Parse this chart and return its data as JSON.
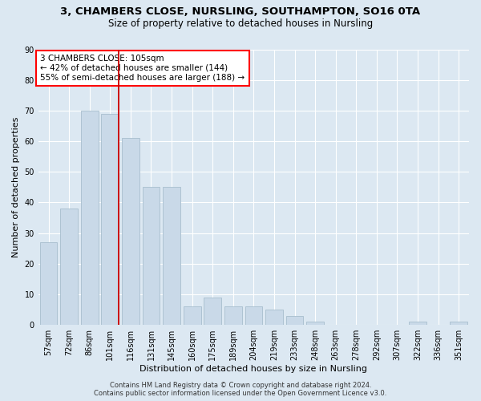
{
  "title1": "3, CHAMBERS CLOSE, NURSLING, SOUTHAMPTON, SO16 0TA",
  "title2": "Size of property relative to detached houses in Nursling",
  "xlabel": "Distribution of detached houses by size in Nursling",
  "ylabel": "Number of detached properties",
  "categories": [
    "57sqm",
    "72sqm",
    "86sqm",
    "101sqm",
    "116sqm",
    "131sqm",
    "145sqm",
    "160sqm",
    "175sqm",
    "189sqm",
    "204sqm",
    "219sqm",
    "233sqm",
    "248sqm",
    "263sqm",
    "278sqm",
    "292sqm",
    "307sqm",
    "322sqm",
    "336sqm",
    "351sqm"
  ],
  "values": [
    27,
    38,
    70,
    69,
    61,
    45,
    45,
    6,
    9,
    6,
    6,
    5,
    3,
    1,
    0,
    0,
    0,
    0,
    1,
    0,
    1
  ],
  "bar_color": "#c9d9e8",
  "bar_edge_color": "#a8bece",
  "red_line_index": 3,
  "annotation_lines": [
    "3 CHAMBERS CLOSE: 105sqm",
    "← 42% of detached houses are smaller (144)",
    "55% of semi-detached houses are larger (188) →"
  ],
  "annotation_box_color": "white",
  "annotation_box_edge_color": "red",
  "red_line_color": "#cc0000",
  "background_color": "#dce8f2",
  "plot_bg_color": "#dce8f2",
  "footer_line1": "Contains HM Land Registry data © Crown copyright and database right 2024.",
  "footer_line2": "Contains public sector information licensed under the Open Government Licence v3.0.",
  "ylim": [
    0,
    90
  ],
  "yticks": [
    0,
    10,
    20,
    30,
    40,
    50,
    60,
    70,
    80,
    90
  ],
  "title1_fontsize": 9.5,
  "title2_fontsize": 8.5,
  "axis_label_fontsize": 8,
  "tick_fontsize": 7,
  "annotation_fontsize": 7.5,
  "footer_fontsize": 6
}
